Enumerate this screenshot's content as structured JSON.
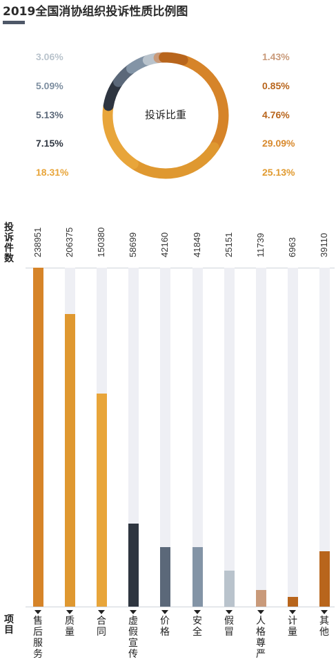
{
  "title": "2019全国消协组织投诉性质比例图",
  "donut": {
    "center_label": "投诉比重",
    "left_labels": [
      {
        "text": "3.06%",
        "color": "#b9c3cc"
      },
      {
        "text": "5.09%",
        "color": "#7d8ea0"
      },
      {
        "text": "5.13%",
        "color": "#5b6879"
      },
      {
        "text": "7.15%",
        "color": "#2e3540"
      },
      {
        "text": "18.31%",
        "color": "#e8a53a"
      }
    ],
    "right_labels": [
      {
        "text": "1.43%",
        "color": "#c99a7a"
      },
      {
        "text": "0.85%",
        "color": "#b8651c"
      },
      {
        "text": "4.76%",
        "color": "#b8651c"
      },
      {
        "text": "29.09%",
        "color": "#d8892d"
      },
      {
        "text": "25.13%",
        "color": "#e09a2f"
      }
    ]
  },
  "chart_data": [
    {
      "type": "pie",
      "title": "投诉比重",
      "categories": [
        "售后服务",
        "质量",
        "合同",
        "虚假宣传",
        "价格",
        "安全",
        "假冒",
        "人格尊严",
        "计量",
        "其他"
      ],
      "values": [
        29.09,
        25.13,
        18.31,
        7.15,
        5.13,
        5.09,
        3.06,
        1.43,
        0.85,
        4.76
      ],
      "colors": [
        "#d68429",
        "#df9830",
        "#e8a53a",
        "#2e3540",
        "#5b6879",
        "#8394a6",
        "#b9c3cc",
        "#c99a7a",
        "#b8651c",
        "#b8651c"
      ]
    },
    {
      "type": "bar",
      "ylabel": "投诉件数",
      "xlabel": "项目",
      "categories": [
        "售后服务",
        "质量",
        "合同",
        "虚假宣传",
        "价格",
        "安全",
        "假冒",
        "人格尊严",
        "计量",
        "其他"
      ],
      "values": [
        238951,
        206375,
        150380,
        58699,
        42160,
        41849,
        25151,
        11739,
        6963,
        39110
      ],
      "ylim": [
        0,
        238951
      ],
      "colors": [
        "#d68429",
        "#df9830",
        "#e8a53a",
        "#2e3540",
        "#5b6879",
        "#8394a6",
        "#b9c3cc",
        "#c99a7a",
        "#b8651c",
        "#b8651c"
      ]
    }
  ],
  "axis": {
    "y_title": "投诉件数",
    "x_title": "项目"
  }
}
